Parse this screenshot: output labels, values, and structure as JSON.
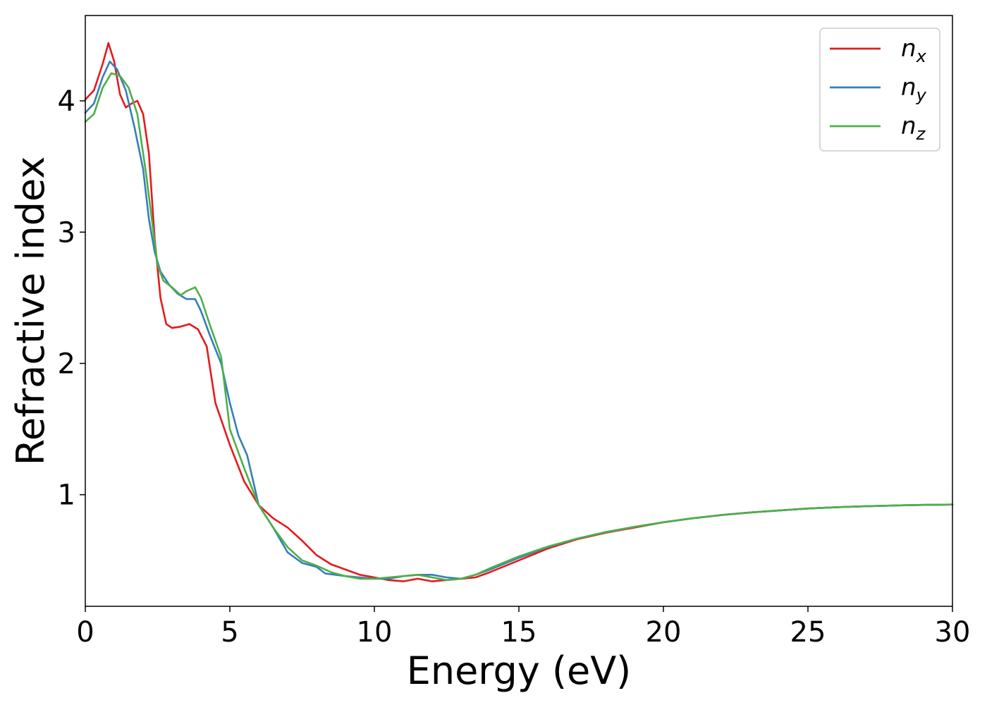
{
  "chart_data": {
    "type": "line",
    "title": "",
    "xlabel": "Energy (eV)",
    "ylabel": "Refractive index",
    "xlim": [
      0,
      30
    ],
    "ylim": [
      0.15,
      4.65
    ],
    "xticks": [
      0,
      5,
      10,
      15,
      20,
      25,
      30
    ],
    "yticks": [
      1,
      2,
      3,
      4
    ],
    "grid": false,
    "legend_position": "top-right",
    "series": [
      {
        "name": "n_x",
        "label_base": "n",
        "label_sub": "x",
        "color": "#e41a1c",
        "points": [
          [
            0,
            4.01
          ],
          [
            0.3,
            4.08
          ],
          [
            0.6,
            4.28
          ],
          [
            0.8,
            4.44
          ],
          [
            1.0,
            4.3
          ],
          [
            1.2,
            4.05
          ],
          [
            1.4,
            3.95
          ],
          [
            1.6,
            3.98
          ],
          [
            1.8,
            4.0
          ],
          [
            2.0,
            3.9
          ],
          [
            2.2,
            3.6
          ],
          [
            2.4,
            2.95
          ],
          [
            2.6,
            2.5
          ],
          [
            2.8,
            2.3
          ],
          [
            3.0,
            2.27
          ],
          [
            3.3,
            2.28
          ],
          [
            3.6,
            2.3
          ],
          [
            3.9,
            2.26
          ],
          [
            4.2,
            2.13
          ],
          [
            4.5,
            1.7
          ],
          [
            5.0,
            1.38
          ],
          [
            5.5,
            1.1
          ],
          [
            6.0,
            0.92
          ],
          [
            6.5,
            0.82
          ],
          [
            7.0,
            0.75
          ],
          [
            7.5,
            0.65
          ],
          [
            8.0,
            0.54
          ],
          [
            8.5,
            0.47
          ],
          [
            9.0,
            0.43
          ],
          [
            9.5,
            0.39
          ],
          [
            10.0,
            0.37
          ],
          [
            10.5,
            0.35
          ],
          [
            11.0,
            0.34
          ],
          [
            11.5,
            0.36
          ],
          [
            12.0,
            0.34
          ],
          [
            12.5,
            0.35
          ],
          [
            13.0,
            0.36
          ],
          [
            13.5,
            0.37
          ],
          [
            14.0,
            0.41
          ],
          [
            15.0,
            0.5
          ],
          [
            16.0,
            0.59
          ],
          [
            17.0,
            0.66
          ],
          [
            18.0,
            0.71
          ],
          [
            19.0,
            0.75
          ],
          [
            20.0,
            0.79
          ],
          [
            21.0,
            0.82
          ],
          [
            22.0,
            0.845
          ],
          [
            23.0,
            0.865
          ],
          [
            24.0,
            0.88
          ],
          [
            25.0,
            0.895
          ],
          [
            26.0,
            0.905
          ],
          [
            27.0,
            0.912
          ],
          [
            28.0,
            0.918
          ],
          [
            29.0,
            0.922
          ],
          [
            30.0,
            0.925
          ]
        ]
      },
      {
        "name": "n_y",
        "label_base": "n",
        "label_sub": "y",
        "color": "#377eb8",
        "points": [
          [
            0,
            3.91
          ],
          [
            0.3,
            3.98
          ],
          [
            0.6,
            4.18
          ],
          [
            0.85,
            4.3
          ],
          [
            1.1,
            4.24
          ],
          [
            1.4,
            4.08
          ],
          [
            1.7,
            3.8
          ],
          [
            2.0,
            3.48
          ],
          [
            2.2,
            3.1
          ],
          [
            2.4,
            2.85
          ],
          [
            2.6,
            2.7
          ],
          [
            2.9,
            2.6
          ],
          [
            3.2,
            2.53
          ],
          [
            3.5,
            2.49
          ],
          [
            3.8,
            2.49
          ],
          [
            4.0,
            2.4
          ],
          [
            4.3,
            2.22
          ],
          [
            4.7,
            2.0
          ],
          [
            5.0,
            1.7
          ],
          [
            5.3,
            1.45
          ],
          [
            5.6,
            1.3
          ],
          [
            6.0,
            0.92
          ],
          [
            6.5,
            0.75
          ],
          [
            7.0,
            0.56
          ],
          [
            7.5,
            0.48
          ],
          [
            8.0,
            0.45
          ],
          [
            8.3,
            0.4
          ],
          [
            9.0,
            0.38
          ],
          [
            9.5,
            0.37
          ],
          [
            10.0,
            0.36
          ],
          [
            10.5,
            0.36
          ],
          [
            11.0,
            0.38
          ],
          [
            11.5,
            0.39
          ],
          [
            12.0,
            0.39
          ],
          [
            12.5,
            0.37
          ],
          [
            13.0,
            0.36
          ],
          [
            13.5,
            0.39
          ],
          [
            14.0,
            0.43
          ],
          [
            15.0,
            0.52
          ],
          [
            16.0,
            0.6
          ],
          [
            17.0,
            0.665
          ],
          [
            18.0,
            0.715
          ],
          [
            19.0,
            0.755
          ],
          [
            20.0,
            0.79
          ],
          [
            21.0,
            0.82
          ],
          [
            22.0,
            0.845
          ],
          [
            23.0,
            0.865
          ],
          [
            24.0,
            0.88
          ],
          [
            25.0,
            0.895
          ],
          [
            26.0,
            0.905
          ],
          [
            27.0,
            0.912
          ],
          [
            28.0,
            0.918
          ],
          [
            29.0,
            0.922
          ],
          [
            30.0,
            0.925
          ]
        ]
      },
      {
        "name": "n_z",
        "label_base": "n",
        "label_sub": "z",
        "color": "#4daf4a",
        "points": [
          [
            0,
            3.84
          ],
          [
            0.3,
            3.9
          ],
          [
            0.6,
            4.1
          ],
          [
            0.9,
            4.21
          ],
          [
            1.2,
            4.19
          ],
          [
            1.5,
            4.1
          ],
          [
            1.8,
            3.9
          ],
          [
            2.1,
            3.45
          ],
          [
            2.3,
            3.1
          ],
          [
            2.5,
            2.75
          ],
          [
            2.7,
            2.63
          ],
          [
            3.0,
            2.58
          ],
          [
            3.3,
            2.52
          ],
          [
            3.5,
            2.55
          ],
          [
            3.8,
            2.58
          ],
          [
            4.0,
            2.5
          ],
          [
            4.3,
            2.3
          ],
          [
            4.7,
            2.05
          ],
          [
            5.0,
            1.5
          ],
          [
            5.5,
            1.2
          ],
          [
            6.0,
            0.92
          ],
          [
            6.5,
            0.75
          ],
          [
            7.0,
            0.6
          ],
          [
            7.5,
            0.5
          ],
          [
            8.0,
            0.46
          ],
          [
            8.5,
            0.41
          ],
          [
            9.0,
            0.38
          ],
          [
            9.5,
            0.36
          ],
          [
            10.0,
            0.36
          ],
          [
            10.5,
            0.37
          ],
          [
            11.0,
            0.38
          ],
          [
            11.5,
            0.39
          ],
          [
            12.0,
            0.37
          ],
          [
            12.5,
            0.35
          ],
          [
            13.0,
            0.36
          ],
          [
            13.5,
            0.39
          ],
          [
            14.0,
            0.44
          ],
          [
            15.0,
            0.53
          ],
          [
            16.0,
            0.605
          ],
          [
            17.0,
            0.665
          ],
          [
            18.0,
            0.715
          ],
          [
            19.0,
            0.755
          ],
          [
            20.0,
            0.79
          ],
          [
            21.0,
            0.82
          ],
          [
            22.0,
            0.845
          ],
          [
            23.0,
            0.865
          ],
          [
            24.0,
            0.88
          ],
          [
            25.0,
            0.895
          ],
          [
            26.0,
            0.905
          ],
          [
            27.0,
            0.912
          ],
          [
            28.0,
            0.918
          ],
          [
            29.0,
            0.922
          ],
          [
            30.0,
            0.925
          ]
        ]
      }
    ]
  }
}
